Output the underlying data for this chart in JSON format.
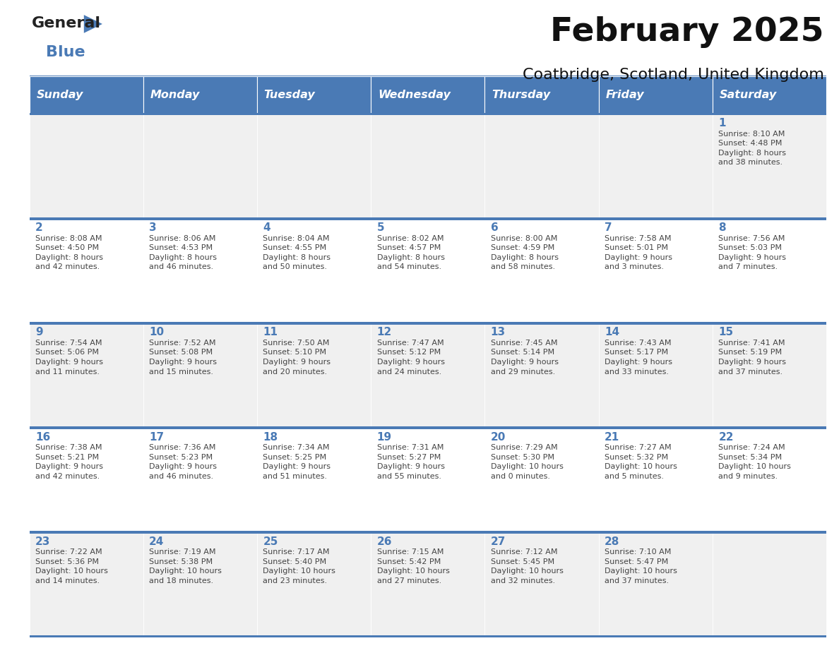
{
  "title": "February 2025",
  "subtitle": "Coatbridge, Scotland, United Kingdom",
  "days_of_week": [
    "Sunday",
    "Monday",
    "Tuesday",
    "Wednesday",
    "Thursday",
    "Friday",
    "Saturday"
  ],
  "header_bg": "#4a7ab5",
  "header_fg": "#ffffff",
  "row_bg_odd": "#f0f0f0",
  "row_bg_even": "#ffffff",
  "separator_color": "#4a7ab5",
  "date_color": "#4a7ab5",
  "text_color": "#444444",
  "title_color": "#111111",
  "logo_general_color": "#222222",
  "logo_blue_color": "#4a7ab5",
  "calendar_data": [
    [
      null,
      null,
      null,
      null,
      null,
      null,
      {
        "day": 1,
        "sunrise": "8:10 AM",
        "sunset": "4:48 PM",
        "daylight": "8 hours\nand 38 minutes."
      }
    ],
    [
      {
        "day": 2,
        "sunrise": "8:08 AM",
        "sunset": "4:50 PM",
        "daylight": "8 hours\nand 42 minutes."
      },
      {
        "day": 3,
        "sunrise": "8:06 AM",
        "sunset": "4:53 PM",
        "daylight": "8 hours\nand 46 minutes."
      },
      {
        "day": 4,
        "sunrise": "8:04 AM",
        "sunset": "4:55 PM",
        "daylight": "8 hours\nand 50 minutes."
      },
      {
        "day": 5,
        "sunrise": "8:02 AM",
        "sunset": "4:57 PM",
        "daylight": "8 hours\nand 54 minutes."
      },
      {
        "day": 6,
        "sunrise": "8:00 AM",
        "sunset": "4:59 PM",
        "daylight": "8 hours\nand 58 minutes."
      },
      {
        "day": 7,
        "sunrise": "7:58 AM",
        "sunset": "5:01 PM",
        "daylight": "9 hours\nand 3 minutes."
      },
      {
        "day": 8,
        "sunrise": "7:56 AM",
        "sunset": "5:03 PM",
        "daylight": "9 hours\nand 7 minutes."
      }
    ],
    [
      {
        "day": 9,
        "sunrise": "7:54 AM",
        "sunset": "5:06 PM",
        "daylight": "9 hours\nand 11 minutes."
      },
      {
        "day": 10,
        "sunrise": "7:52 AM",
        "sunset": "5:08 PM",
        "daylight": "9 hours\nand 15 minutes."
      },
      {
        "day": 11,
        "sunrise": "7:50 AM",
        "sunset": "5:10 PM",
        "daylight": "9 hours\nand 20 minutes."
      },
      {
        "day": 12,
        "sunrise": "7:47 AM",
        "sunset": "5:12 PM",
        "daylight": "9 hours\nand 24 minutes."
      },
      {
        "day": 13,
        "sunrise": "7:45 AM",
        "sunset": "5:14 PM",
        "daylight": "9 hours\nand 29 minutes."
      },
      {
        "day": 14,
        "sunrise": "7:43 AM",
        "sunset": "5:17 PM",
        "daylight": "9 hours\nand 33 minutes."
      },
      {
        "day": 15,
        "sunrise": "7:41 AM",
        "sunset": "5:19 PM",
        "daylight": "9 hours\nand 37 minutes."
      }
    ],
    [
      {
        "day": 16,
        "sunrise": "7:38 AM",
        "sunset": "5:21 PM",
        "daylight": "9 hours\nand 42 minutes."
      },
      {
        "day": 17,
        "sunrise": "7:36 AM",
        "sunset": "5:23 PM",
        "daylight": "9 hours\nand 46 minutes."
      },
      {
        "day": 18,
        "sunrise": "7:34 AM",
        "sunset": "5:25 PM",
        "daylight": "9 hours\nand 51 minutes."
      },
      {
        "day": 19,
        "sunrise": "7:31 AM",
        "sunset": "5:27 PM",
        "daylight": "9 hours\nand 55 minutes."
      },
      {
        "day": 20,
        "sunrise": "7:29 AM",
        "sunset": "5:30 PM",
        "daylight": "10 hours\nand 0 minutes."
      },
      {
        "day": 21,
        "sunrise": "7:27 AM",
        "sunset": "5:32 PM",
        "daylight": "10 hours\nand 5 minutes."
      },
      {
        "day": 22,
        "sunrise": "7:24 AM",
        "sunset": "5:34 PM",
        "daylight": "10 hours\nand 9 minutes."
      }
    ],
    [
      {
        "day": 23,
        "sunrise": "7:22 AM",
        "sunset": "5:36 PM",
        "daylight": "10 hours\nand 14 minutes."
      },
      {
        "day": 24,
        "sunrise": "7:19 AM",
        "sunset": "5:38 PM",
        "daylight": "10 hours\nand 18 minutes."
      },
      {
        "day": 25,
        "sunrise": "7:17 AM",
        "sunset": "5:40 PM",
        "daylight": "10 hours\nand 23 minutes."
      },
      {
        "day": 26,
        "sunrise": "7:15 AM",
        "sunset": "5:42 PM",
        "daylight": "10 hours\nand 27 minutes."
      },
      {
        "day": 27,
        "sunrise": "7:12 AM",
        "sunset": "5:45 PM",
        "daylight": "10 hours\nand 32 minutes."
      },
      {
        "day": 28,
        "sunrise": "7:10 AM",
        "sunset": "5:47 PM",
        "daylight": "10 hours\nand 37 minutes."
      },
      null
    ]
  ]
}
